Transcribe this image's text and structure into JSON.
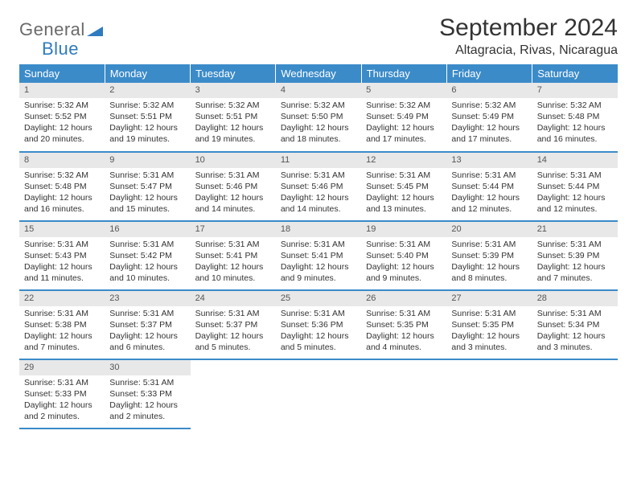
{
  "brand": {
    "part1": "General",
    "part2": "Blue"
  },
  "title": "September 2024",
  "location": "Altagracia, Rivas, Nicaragua",
  "theme": {
    "header_bg": "#3b8bc9",
    "header_fg": "#ffffff",
    "daynum_bg": "#e8e8e8",
    "row_border": "#3b8bc9",
    "logo_gray": "#6a6a6a",
    "logo_blue": "#2f7bbf"
  },
  "weekdays": [
    "Sunday",
    "Monday",
    "Tuesday",
    "Wednesday",
    "Thursday",
    "Friday",
    "Saturday"
  ],
  "days": [
    {
      "n": "1",
      "sr": "5:32 AM",
      "ss": "5:52 PM",
      "dl": "12 hours and 20 minutes."
    },
    {
      "n": "2",
      "sr": "5:32 AM",
      "ss": "5:51 PM",
      "dl": "12 hours and 19 minutes."
    },
    {
      "n": "3",
      "sr": "5:32 AM",
      "ss": "5:51 PM",
      "dl": "12 hours and 19 minutes."
    },
    {
      "n": "4",
      "sr": "5:32 AM",
      "ss": "5:50 PM",
      "dl": "12 hours and 18 minutes."
    },
    {
      "n": "5",
      "sr": "5:32 AM",
      "ss": "5:49 PM",
      "dl": "12 hours and 17 minutes."
    },
    {
      "n": "6",
      "sr": "5:32 AM",
      "ss": "5:49 PM",
      "dl": "12 hours and 17 minutes."
    },
    {
      "n": "7",
      "sr": "5:32 AM",
      "ss": "5:48 PM",
      "dl": "12 hours and 16 minutes."
    },
    {
      "n": "8",
      "sr": "5:32 AM",
      "ss": "5:48 PM",
      "dl": "12 hours and 16 minutes."
    },
    {
      "n": "9",
      "sr": "5:31 AM",
      "ss": "5:47 PM",
      "dl": "12 hours and 15 minutes."
    },
    {
      "n": "10",
      "sr": "5:31 AM",
      "ss": "5:46 PM",
      "dl": "12 hours and 14 minutes."
    },
    {
      "n": "11",
      "sr": "5:31 AM",
      "ss": "5:46 PM",
      "dl": "12 hours and 14 minutes."
    },
    {
      "n": "12",
      "sr": "5:31 AM",
      "ss": "5:45 PM",
      "dl": "12 hours and 13 minutes."
    },
    {
      "n": "13",
      "sr": "5:31 AM",
      "ss": "5:44 PM",
      "dl": "12 hours and 12 minutes."
    },
    {
      "n": "14",
      "sr": "5:31 AM",
      "ss": "5:44 PM",
      "dl": "12 hours and 12 minutes."
    },
    {
      "n": "15",
      "sr": "5:31 AM",
      "ss": "5:43 PM",
      "dl": "12 hours and 11 minutes."
    },
    {
      "n": "16",
      "sr": "5:31 AM",
      "ss": "5:42 PM",
      "dl": "12 hours and 10 minutes."
    },
    {
      "n": "17",
      "sr": "5:31 AM",
      "ss": "5:41 PM",
      "dl": "12 hours and 10 minutes."
    },
    {
      "n": "18",
      "sr": "5:31 AM",
      "ss": "5:41 PM",
      "dl": "12 hours and 9 minutes."
    },
    {
      "n": "19",
      "sr": "5:31 AM",
      "ss": "5:40 PM",
      "dl": "12 hours and 9 minutes."
    },
    {
      "n": "20",
      "sr": "5:31 AM",
      "ss": "5:39 PM",
      "dl": "12 hours and 8 minutes."
    },
    {
      "n": "21",
      "sr": "5:31 AM",
      "ss": "5:39 PM",
      "dl": "12 hours and 7 minutes."
    },
    {
      "n": "22",
      "sr": "5:31 AM",
      "ss": "5:38 PM",
      "dl": "12 hours and 7 minutes."
    },
    {
      "n": "23",
      "sr": "5:31 AM",
      "ss": "5:37 PM",
      "dl": "12 hours and 6 minutes."
    },
    {
      "n": "24",
      "sr": "5:31 AM",
      "ss": "5:37 PM",
      "dl": "12 hours and 5 minutes."
    },
    {
      "n": "25",
      "sr": "5:31 AM",
      "ss": "5:36 PM",
      "dl": "12 hours and 5 minutes."
    },
    {
      "n": "26",
      "sr": "5:31 AM",
      "ss": "5:35 PM",
      "dl": "12 hours and 4 minutes."
    },
    {
      "n": "27",
      "sr": "5:31 AM",
      "ss": "5:35 PM",
      "dl": "12 hours and 3 minutes."
    },
    {
      "n": "28",
      "sr": "5:31 AM",
      "ss": "5:34 PM",
      "dl": "12 hours and 3 minutes."
    },
    {
      "n": "29",
      "sr": "5:31 AM",
      "ss": "5:33 PM",
      "dl": "12 hours and 2 minutes."
    },
    {
      "n": "30",
      "sr": "5:31 AM",
      "ss": "5:33 PM",
      "dl": "12 hours and 2 minutes."
    }
  ],
  "labels": {
    "sunrise": "Sunrise:",
    "sunset": "Sunset:",
    "daylight": "Daylight:"
  }
}
